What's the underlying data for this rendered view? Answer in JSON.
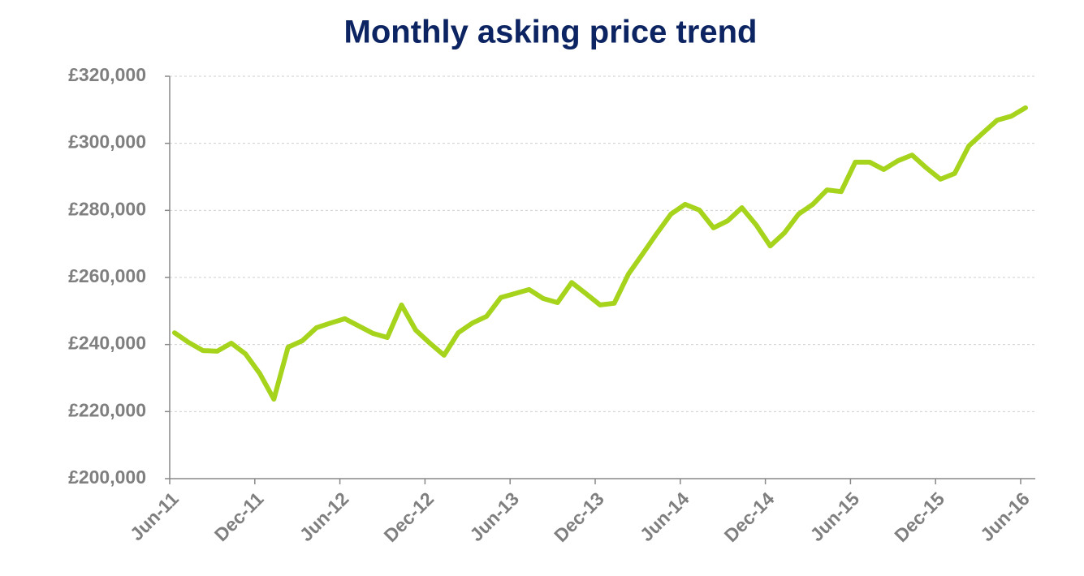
{
  "chart_data": {
    "type": "line",
    "title": "Monthly asking price trend",
    "categories": [
      "Jun-11",
      null,
      null,
      null,
      null,
      null,
      "Dec-11",
      null,
      null,
      null,
      null,
      null,
      "Jun-12",
      null,
      null,
      null,
      null,
      null,
      "Dec-12",
      null,
      null,
      null,
      null,
      null,
      "Jun-13",
      null,
      null,
      null,
      null,
      null,
      "Dec-13",
      null,
      null,
      null,
      null,
      null,
      "Jun-14",
      null,
      null,
      null,
      null,
      null,
      "Dec-14",
      null,
      null,
      null,
      null,
      null,
      "Jun-15",
      null,
      null,
      null,
      null,
      null,
      "Dec-15",
      null,
      null,
      null,
      null,
      null,
      "Jun-16"
    ],
    "series": [
      {
        "color": "#a6d41c",
        "values": [
          243500,
          240600,
          238200,
          238000,
          240400,
          237200,
          231400,
          223700,
          239200,
          241100,
          245000,
          246400,
          247700,
          245500,
          243300,
          242100,
          251800,
          244300,
          240400,
          236800,
          243500,
          246400,
          248400,
          254000,
          255200,
          256400,
          253700,
          252500,
          258500,
          255200,
          251800,
          252300,
          261000,
          267000,
          273100,
          278900,
          281800,
          280100,
          274800,
          276900,
          280800,
          275700,
          269400,
          273300,
          278900,
          281800,
          286100,
          285600,
          294400,
          294400,
          292200,
          294800,
          296500,
          292700,
          289300,
          291000,
          299200,
          303100,
          306900,
          308100,
          310600
        ]
      }
    ],
    "ylim": [
      200000,
      320000
    ],
    "yticks": [
      {
        "value": 200000,
        "label": "£200,000"
      },
      {
        "value": 220000,
        "label": "£220,000"
      },
      {
        "value": 240000,
        "label": "£240,000"
      },
      {
        "value": 260000,
        "label": "£260,000"
      },
      {
        "value": 280000,
        "label": "£280,000"
      },
      {
        "value": 300000,
        "label": "£300,000"
      },
      {
        "value": 320000,
        "label": "£320,000"
      }
    ],
    "grid": true
  }
}
